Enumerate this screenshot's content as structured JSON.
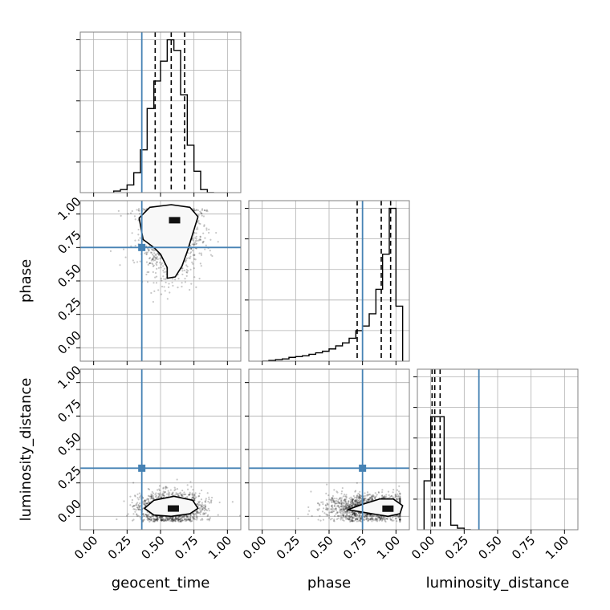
{
  "chart_data": {
    "type": "corner",
    "parameters": [
      "geocent_time",
      "phase",
      "luminosity_distance"
    ],
    "truth_color": "#4682b4",
    "truths": {
      "geocent_time": 0.36,
      "phase": 0.75,
      "luminosity_distance": 0.36
    },
    "ticks": [
      "0.00",
      "0.25",
      "0.50",
      "0.75",
      "1.00"
    ],
    "axis_range": [
      -0.1,
      1.1
    ],
    "grid": true,
    "diagonal": [
      {
        "parameter": "geocent_time",
        "quantiles": [
          0.46,
          0.58,
          0.68
        ],
        "bin_edges": [
          0.15,
          0.2,
          0.25,
          0.3,
          0.35,
          0.4,
          0.45,
          0.5,
          0.55,
          0.6,
          0.65,
          0.7,
          0.75,
          0.8,
          0.85,
          0.9
        ],
        "heights": [
          0.01,
          0.02,
          0.05,
          0.13,
          0.28,
          0.55,
          0.73,
          0.86,
          1.0,
          0.93,
          0.64,
          0.31,
          0.14,
          0.02,
          0.0
        ]
      },
      {
        "parameter": "phase",
        "quantiles": [
          0.71,
          0.89,
          0.96
        ],
        "bin_edges": [
          0.0,
          0.05,
          0.1,
          0.15,
          0.2,
          0.25,
          0.3,
          0.35,
          0.4,
          0.45,
          0.5,
          0.55,
          0.6,
          0.65,
          0.7,
          0.75,
          0.8,
          0.85,
          0.9,
          0.95,
          1.0,
          1.05
        ],
        "heights": [
          0.0,
          0.005,
          0.01,
          0.015,
          0.025,
          0.03,
          0.035,
          0.045,
          0.055,
          0.065,
          0.08,
          0.1,
          0.12,
          0.15,
          0.2,
          0.23,
          0.31,
          0.47,
          0.7,
          1.0,
          0.36
        ]
      },
      {
        "parameter": "luminosity_distance",
        "quantiles": [
          0.01,
          0.03,
          0.07
        ],
        "bin_edges": [
          -0.05,
          0.0,
          0.05,
          0.1,
          0.15,
          0.2,
          0.25,
          0.3
        ],
        "heights": [
          0.32,
          0.74,
          0.74,
          0.2,
          0.03,
          0.01,
          0.0
        ]
      }
    ],
    "scatter_panels": [
      {
        "x": "geocent_time",
        "y": "phase",
        "mean": [
          0.57,
          0.85
        ],
        "spread": [
          0.11,
          0.15
        ],
        "contours": [
          {
            "level": "inner",
            "points": [
              [
                0.5,
                0.96
              ],
              [
                0.54,
                0.99
              ],
              [
                0.62,
                1.0
              ],
              [
                0.69,
                0.98
              ],
              [
                0.7,
                0.95
              ],
              [
                0.66,
                0.92
              ],
              [
                0.6,
                0.91
              ],
              [
                0.53,
                0.92
              ]
            ]
          },
          {
            "level": "middle",
            "points": [
              [
                0.44,
                0.97
              ],
              [
                0.5,
                1.02
              ],
              [
                0.6,
                1.04
              ],
              [
                0.7,
                1.02
              ],
              [
                0.74,
                0.97
              ],
              [
                0.72,
                0.89
              ],
              [
                0.65,
                0.85
              ],
              [
                0.56,
                0.85
              ],
              [
                0.47,
                0.88
              ]
            ]
          },
          {
            "level": "outer",
            "points": [
              [
                0.34,
                0.97
              ],
              [
                0.42,
                1.05
              ],
              [
                0.58,
                1.07
              ],
              [
                0.72,
                1.05
              ],
              [
                0.78,
                0.98
              ],
              [
                0.74,
                0.85
              ],
              [
                0.7,
                0.72
              ],
              [
                0.66,
                0.61
              ],
              [
                0.61,
                0.53
              ],
              [
                0.55,
                0.52
              ],
              [
                0.55,
                0.6
              ],
              [
                0.5,
                0.7
              ],
              [
                0.45,
                0.75
              ],
              [
                0.37,
                0.81
              ]
            ]
          }
        ]
      },
      {
        "x": "geocent_time",
        "y": "luminosity_distance",
        "mean": [
          0.58,
          0.06
        ],
        "spread": [
          0.12,
          0.06
        ],
        "contours": [
          {
            "level": "inner",
            "points": [
              [
                0.52,
                0.06
              ],
              [
                0.55,
                0.08
              ],
              [
                0.62,
                0.08
              ],
              [
                0.67,
                0.07
              ],
              [
                0.67,
                0.045
              ],
              [
                0.6,
                0.035
              ],
              [
                0.54,
                0.04
              ]
            ]
          },
          {
            "level": "middle",
            "points": [
              [
                0.46,
                0.06
              ],
              [
                0.52,
                0.1
              ],
              [
                0.62,
                0.11
              ],
              [
                0.71,
                0.09
              ],
              [
                0.72,
                0.05
              ],
              [
                0.66,
                0.03
              ],
              [
                0.55,
                0.025
              ],
              [
                0.48,
                0.04
              ]
            ]
          },
          {
            "level": "outer",
            "points": [
              [
                0.38,
                0.06
              ],
              [
                0.45,
                0.12
              ],
              [
                0.6,
                0.15
              ],
              [
                0.74,
                0.12
              ],
              [
                0.78,
                0.06
              ],
              [
                0.72,
                0.02
              ],
              [
                0.58,
                0.0
              ],
              [
                0.45,
                0.01
              ]
            ]
          }
        ]
      },
      {
        "x": "phase",
        "y": "luminosity_distance",
        "mean": [
          0.8,
          0.06
        ],
        "spread": [
          0.16,
          0.05
        ],
        "contours": [
          {
            "level": "inner",
            "points": [
              [
                0.9,
                0.06
              ],
              [
                0.93,
                0.08
              ],
              [
                0.97,
                0.08
              ],
              [
                0.98,
                0.05
              ],
              [
                0.95,
                0.035
              ],
              [
                0.91,
                0.04
              ]
            ]
          },
          {
            "level": "middle",
            "points": [
              [
                0.84,
                0.06
              ],
              [
                0.9,
                0.1
              ],
              [
                0.99,
                0.1
              ],
              [
                1.01,
                0.06
              ],
              [
                0.98,
                0.02
              ],
              [
                0.9,
                0.02
              ]
            ]
          },
          {
            "level": "outer",
            "points": [
              [
                0.64,
                0.05
              ],
              [
                0.75,
                0.09
              ],
              [
                0.88,
                0.13
              ],
              [
                0.98,
                0.13
              ],
              [
                1.05,
                0.08
              ],
              [
                1.03,
                0.02
              ],
              [
                0.94,
                0.0
              ],
              [
                0.82,
                0.02
              ]
            ]
          }
        ]
      }
    ]
  }
}
